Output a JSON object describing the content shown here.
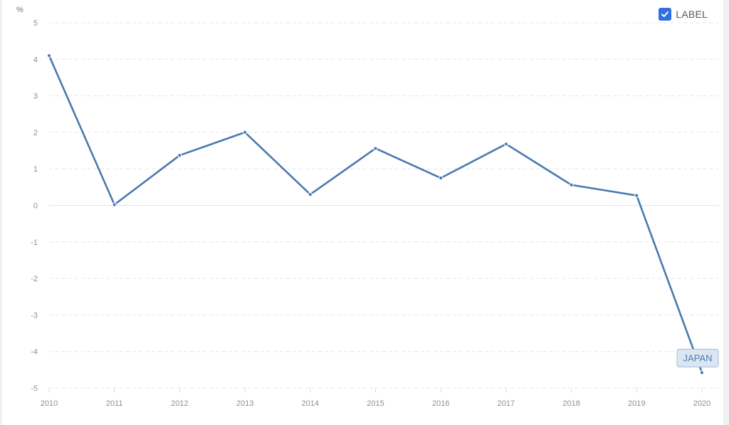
{
  "chart_data": {
    "type": "line",
    "ylabel": "%",
    "ylim": [
      -5,
      5
    ],
    "yticks": [
      5,
      4,
      3,
      2,
      1,
      0,
      -1,
      -2,
      -3,
      -4,
      -5
    ],
    "x": [
      "2010",
      "2011",
      "2012",
      "2013",
      "2014",
      "2015",
      "2016",
      "2017",
      "2018",
      "2019",
      "2020"
    ],
    "series": [
      {
        "name": "JAPAN",
        "values": [
          4.1,
          0.02,
          1.37,
          2.0,
          0.3,
          1.56,
          0.75,
          1.68,
          0.56,
          0.27,
          -4.58
        ]
      }
    ],
    "grid": true,
    "colors": {
      "line": "#4a7aad",
      "grid": "#e3e5e8",
      "tag_fill": "#dbe6f3",
      "tag_border": "#a7bcd6",
      "checkbox": "#2f6fe0"
    }
  },
  "legend": {
    "label": "LABEL",
    "checked": true,
    "icon": "checkmark-icon"
  }
}
